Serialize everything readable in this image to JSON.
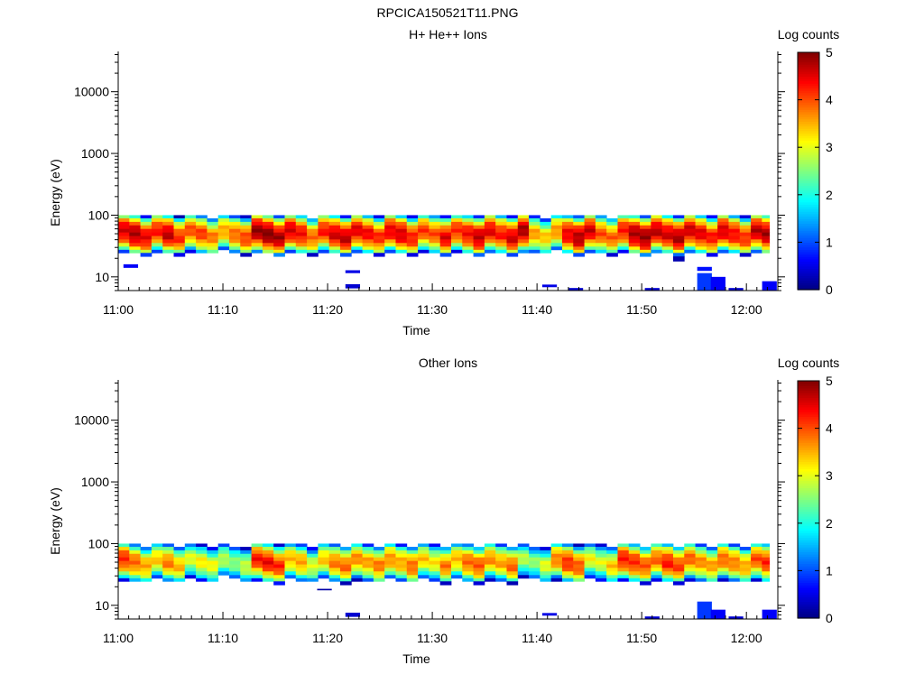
{
  "figure": {
    "title": "RPCICA150521T11.PNG"
  },
  "colors": {
    "background": "#ffffff",
    "axis": "#000000",
    "colormap": "jet"
  },
  "chart_data": [
    {
      "type": "heatmap",
      "title": "H+ He++ Ions",
      "xlabel": "Time",
      "ylabel": "Energy (eV)",
      "y_scale": "log",
      "ylim": [
        6,
        45000
      ],
      "xlim": [
        "11:00",
        "12:03"
      ],
      "x_ticks": [
        "11:00",
        "11:10",
        "11:20",
        "11:30",
        "11:40",
        "11:50",
        "12:00"
      ],
      "y_ticks": [
        "10",
        "100",
        "1000",
        "10000"
      ],
      "colorbar": {
        "label": "Log counts",
        "range": [
          0,
          5
        ],
        "ticks": [
          "0",
          "1",
          "2",
          "3",
          "4",
          "5"
        ]
      },
      "x_start_min": 0,
      "time_step_min": 1.06,
      "energy_rows_eV": [
        95,
        83,
        73,
        64,
        56,
        49,
        43,
        38,
        33,
        29,
        26,
        23,
        20
      ],
      "peak_log_counts": [
        4.6,
        4.8,
        4.5,
        4.3,
        4.7,
        4.2,
        4.0,
        4.1,
        3.8,
        3.6,
        3.9,
        4.1,
        4.9,
        5.0,
        4.8,
        4.6,
        4.4,
        3.9,
        4.3,
        4.6,
        4.7,
        4.5,
        4.4,
        4.2,
        4.5,
        4.6,
        4.3,
        4.1,
        4.0,
        4.5,
        4.2,
        4.4,
        4.7,
        4.5,
        4.3,
        4.6,
        4.8,
        3.6,
        3.4,
        3.7,
        4.5,
        4.8,
        4.6,
        4.0,
        3.9,
        4.3,
        4.8,
        4.9,
        4.7,
        4.6,
        4.8,
        4.6,
        4.5,
        4.3,
        4.6,
        4.4,
        4.2,
        4.7,
        4.8,
        4.6,
        4.9,
        4.7,
        4.3
      ],
      "sparse_low_energy": [
        {
          "t": 0.5,
          "e_lo": 14,
          "e_hi": 16,
          "v": 0.6
        },
        {
          "t": 21.7,
          "e_lo": 11.5,
          "e_hi": 12.8,
          "v": 0.5
        },
        {
          "t": 21.7,
          "e_lo": 6.5,
          "e_hi": 7.6,
          "v": 0.4
        },
        {
          "t": 40.5,
          "e_lo": 6.8,
          "e_hi": 7.5,
          "v": 0.5
        },
        {
          "t": 43.0,
          "e_lo": 6.0,
          "e_hi": 6.6,
          "v": 0.4
        },
        {
          "t": 50.3,
          "e_lo": 6.0,
          "e_hi": 6.6,
          "v": 0.4
        },
        {
          "t": 55.3,
          "e_lo": 12.5,
          "e_hi": 14.5,
          "v": 0.7
        },
        {
          "t": 55.3,
          "e_lo": 6.0,
          "e_hi": 11.5,
          "v": 0.9
        },
        {
          "t": 56.6,
          "e_lo": 6.0,
          "e_hi": 10.0,
          "v": 0.6
        },
        {
          "t": 58.3,
          "e_lo": 6.0,
          "e_hi": 6.6,
          "v": 0.4
        },
        {
          "t": 61.5,
          "e_lo": 6.0,
          "e_hi": 8.5,
          "v": 0.6
        }
      ]
    },
    {
      "type": "heatmap",
      "title": "Other Ions",
      "xlabel": "Time",
      "ylabel": "Energy (eV)",
      "y_scale": "log",
      "ylim": [
        6,
        45000
      ],
      "xlim": [
        "11:00",
        "12:03"
      ],
      "x_ticks": [
        "11:00",
        "11:10",
        "11:20",
        "11:30",
        "11:40",
        "11:50",
        "12:00"
      ],
      "y_ticks": [
        "10",
        "100",
        "1000",
        "10000"
      ],
      "colorbar": {
        "label": "Log counts",
        "range": [
          0,
          5
        ],
        "ticks": [
          "0",
          "1",
          "2",
          "3",
          "4",
          "5"
        ]
      },
      "x_start_min": 0,
      "time_step_min": 1.06,
      "energy_rows_eV": [
        95,
        83,
        73,
        64,
        56,
        49,
        43,
        38,
        33,
        29,
        26,
        23,
        20
      ],
      "peak_log_counts": [
        4.2,
        3.9,
        3.6,
        3.4,
        3.8,
        3.5,
        3.0,
        3.2,
        3.1,
        2.8,
        2.6,
        2.9,
        4.3,
        4.4,
        4.2,
        3.5,
        3.6,
        3.0,
        3.4,
        3.8,
        3.9,
        3.7,
        3.6,
        3.8,
        3.7,
        3.6,
        3.9,
        3.4,
        3.2,
        3.8,
        3.5,
        3.9,
        4.0,
        3.7,
        3.6,
        3.9,
        2.8,
        2.6,
        3.0,
        3.8,
        4.2,
        4.0,
        3.1,
        3.0,
        3.4,
        4.3,
        4.2,
        4.0,
        3.9,
        4.3,
        4.1,
        3.9,
        3.7,
        3.6,
        3.9,
        3.8,
        3.6,
        4.0,
        4.2,
        4.0,
        4.2,
        4.1,
        3.8
      ],
      "sparse_low_energy": [
        {
          "t": 21.7,
          "e_lo": 6.5,
          "e_hi": 7.6,
          "v": 0.4
        },
        {
          "t": 19.0,
          "e_lo": 17.5,
          "e_hi": 18.5,
          "v": 0.2
        },
        {
          "t": 40.5,
          "e_lo": 6.8,
          "e_hi": 7.5,
          "v": 0.5
        },
        {
          "t": 50.3,
          "e_lo": 6.0,
          "e_hi": 6.6,
          "v": 0.4
        },
        {
          "t": 55.3,
          "e_lo": 6.0,
          "e_hi": 11.5,
          "v": 0.9
        },
        {
          "t": 56.6,
          "e_lo": 6.0,
          "e_hi": 8.5,
          "v": 0.6
        },
        {
          "t": 58.3,
          "e_lo": 6.0,
          "e_hi": 6.6,
          "v": 0.4
        },
        {
          "t": 61.5,
          "e_lo": 6.0,
          "e_hi": 8.5,
          "v": 0.6
        }
      ]
    }
  ]
}
